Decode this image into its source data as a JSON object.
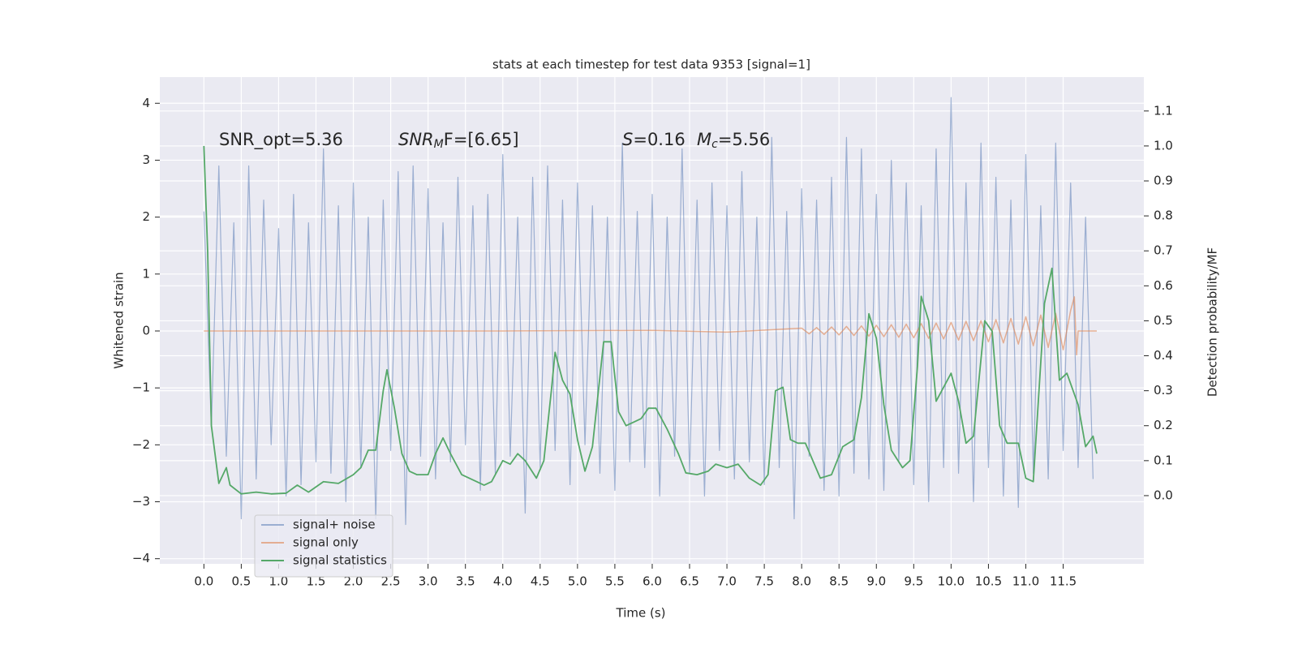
{
  "chart_data": {
    "type": "line",
    "title": "stats at each timestep for test data 9353 [signal=1]",
    "xlabel": "Time (s)",
    "ylabel": "Whitened strain",
    "y2label": "Detection probability/MF",
    "grid": true,
    "legend": "lower left",
    "xlim": [
      -0.59,
      12.58
    ],
    "ylim": [
      -4.09,
      4.46
    ],
    "y2lim": [
      -0.195,
      1.197
    ],
    "xticks": [
      {
        "value": 0,
        "label": "0.0"
      },
      0.5,
      {
        "value": 1,
        "label": "1.0"
      },
      1.5,
      {
        "value": 2,
        "label": "2.0"
      },
      2.5,
      {
        "value": 3,
        "label": "3.0"
      },
      3.5,
      {
        "value": 4,
        "label": "4.0"
      },
      4.5,
      {
        "value": 5,
        "label": "5.0"
      },
      5.5,
      {
        "value": 6,
        "label": "6.0"
      },
      6.5,
      {
        "value": 7,
        "label": "7.0"
      },
      7.5,
      {
        "value": 8,
        "label": "8.0"
      },
      8.5,
      {
        "value": 9,
        "label": "9.0"
      },
      9.5,
      {
        "value": 10,
        "label": "10.0"
      },
      10.5,
      {
        "value": 11,
        "label": "11.0"
      },
      11.5
    ],
    "yticks": [
      {
        "value": -4,
        "label": "−4"
      },
      {
        "value": -3,
        "label": "−3"
      },
      {
        "value": -2,
        "label": "−2"
      },
      {
        "value": -1,
        "label": "−1"
      },
      0,
      1,
      2,
      3,
      4
    ],
    "y2ticks": [
      {
        "value": 0,
        "label": "0.0"
      },
      0.1,
      0.2,
      0.3,
      0.4,
      0.5,
      0.6,
      0.7,
      0.8,
      0.9,
      {
        "value": 1,
        "label": "1.0"
      },
      1.1
    ],
    "annotations": [
      {
        "text": "SNR_opt=5.36"
      },
      {
        "symbol": "SNR",
        "subscript": "M",
        "text": "F=[6.65]"
      },
      {
        "symbol": "S",
        "text": "=0.16"
      },
      {
        "symbol": "M",
        "subscript": "c",
        "text": "=5.56"
      }
    ],
    "series": [
      {
        "name": "signal+ noise",
        "color": "#4c72b0",
        "x": [
          0.0,
          0.1,
          0.2,
          0.3,
          0.4,
          0.5,
          0.6,
          0.7,
          0.8,
          0.9,
          1.0,
          1.1,
          1.2,
          1.3,
          1.4,
          1.5,
          1.6,
          1.7,
          1.8,
          1.9,
          2.0,
          2.1,
          2.2,
          2.3,
          2.4,
          2.5,
          2.6,
          2.7,
          2.8,
          2.9,
          3.0,
          3.1,
          3.2,
          3.3,
          3.4,
          3.5,
          3.6,
          3.7,
          3.8,
          3.9,
          4.0,
          4.1,
          4.2,
          4.3,
          4.4,
          4.5,
          4.6,
          4.7,
          4.8,
          4.9,
          5.0,
          5.1,
          5.2,
          5.3,
          5.4,
          5.5,
          5.6,
          5.7,
          5.8,
          5.9,
          6.0,
          6.1,
          6.2,
          6.3,
          6.4,
          6.5,
          6.6,
          6.7,
          6.8,
          6.9,
          7.0,
          7.1,
          7.2,
          7.3,
          7.4,
          7.5,
          7.6,
          7.7,
          7.8,
          7.9,
          8.0,
          8.1,
          8.2,
          8.3,
          8.4,
          8.5,
          8.6,
          8.7,
          8.8,
          8.9,
          9.0,
          9.1,
          9.2,
          9.3,
          9.4,
          9.5,
          9.6,
          9.7,
          9.8,
          9.9,
          10.0,
          10.1,
          10.2,
          10.3,
          10.4,
          10.5,
          10.6,
          10.7,
          10.8,
          10.9,
          11.0,
          11.1,
          11.2,
          11.3,
          11.4,
          11.5,
          11.6,
          11.7,
          11.8,
          11.9
        ],
        "values": [
          2.1,
          -1.7,
          2.9,
          -2.2,
          1.9,
          -3.3,
          2.9,
          -2.6,
          2.3,
          -2.0,
          1.8,
          -2.9,
          2.4,
          -2.7,
          1.9,
          -2.3,
          3.2,
          -2.5,
          2.2,
          -3.0,
          2.6,
          -2.4,
          2.0,
          -3.3,
          2.3,
          -2.1,
          2.8,
          -3.4,
          2.9,
          -2.2,
          2.5,
          -2.6,
          1.9,
          -2.3,
          2.7,
          -2.0,
          2.2,
          -2.8,
          2.4,
          -2.5,
          3.1,
          -2.2,
          2.0,
          -3.2,
          2.7,
          -2.4,
          2.9,
          -2.1,
          2.3,
          -2.7,
          2.6,
          -2.0,
          2.2,
          -2.5,
          2.0,
          -2.8,
          3.3,
          -2.3,
          2.1,
          -2.4,
          2.4,
          -2.9,
          2.0,
          -2.2,
          3.2,
          -2.5,
          2.3,
          -2.9,
          2.6,
          -2.1,
          2.2,
          -2.6,
          2.8,
          -2.3,
          2.0,
          -2.7,
          3.4,
          -2.4,
          2.1,
          -3.3,
          2.5,
          -2.2,
          2.3,
          -2.8,
          2.7,
          -2.9,
          3.4,
          -2.5,
          3.2,
          -2.6,
          2.4,
          -2.8,
          3.0,
          -2.3,
          2.6,
          -2.7,
          2.2,
          -3.0,
          3.2,
          -2.4,
          4.1,
          -2.5,
          2.6,
          -3.0,
          3.3,
          -2.4,
          2.7,
          -2.9,
          2.3,
          -3.1,
          3.1,
          -2.5,
          2.2,
          -2.6,
          3.3,
          -2.1,
          2.6,
          -2.4,
          2.0,
          -2.6
        ]
      },
      {
        "name": "signal only",
        "color": "#dd8452",
        "x": [
          0.0,
          4.0,
          6.0,
          7.0,
          8.0,
          8.1,
          8.2,
          8.3,
          8.4,
          8.5,
          8.6,
          8.7,
          8.8,
          8.9,
          9.0,
          9.1,
          9.2,
          9.3,
          9.4,
          9.5,
          9.6,
          9.7,
          9.8,
          9.9,
          10.0,
          10.1,
          10.2,
          10.3,
          10.4,
          10.5,
          10.6,
          10.7,
          10.8,
          10.9,
          11.0,
          11.1,
          11.2,
          11.3,
          11.4,
          11.5,
          11.6,
          11.65,
          11.68,
          11.7,
          11.95
        ],
        "values": [
          0,
          0,
          0.01,
          -0.02,
          0.05,
          -0.05,
          0.06,
          -0.06,
          0.07,
          -0.07,
          0.08,
          -0.08,
          0.09,
          -0.09,
          0.1,
          -0.1,
          0.11,
          -0.11,
          0.12,
          -0.12,
          0.13,
          -0.13,
          0.14,
          -0.14,
          0.15,
          -0.16,
          0.17,
          -0.17,
          0.18,
          -0.19,
          0.2,
          -0.21,
          0.22,
          -0.23,
          0.25,
          -0.26,
          0.28,
          -0.29,
          0.31,
          -0.33,
          0.36,
          0.6,
          -0.42,
          0,
          0
        ]
      },
      {
        "name": "signal statistics",
        "color": "#55a868",
        "axis": "y2",
        "x": [
          0.0,
          0.05,
          0.1,
          0.2,
          0.3,
          0.35,
          0.5,
          0.7,
          0.9,
          1.1,
          1.25,
          1.4,
          1.6,
          1.8,
          2.0,
          2.1,
          2.2,
          2.3,
          2.4,
          2.45,
          2.55,
          2.65,
          2.75,
          2.85,
          3.0,
          3.1,
          3.2,
          3.3,
          3.45,
          3.65,
          3.75,
          3.85,
          4.0,
          4.1,
          4.2,
          4.3,
          4.45,
          4.55,
          4.65,
          4.7,
          4.8,
          4.9,
          5.0,
          5.1,
          5.2,
          5.35,
          5.45,
          5.55,
          5.65,
          5.75,
          5.85,
          5.95,
          6.05,
          6.2,
          6.35,
          6.45,
          6.6,
          6.75,
          6.85,
          7.0,
          7.15,
          7.3,
          7.45,
          7.55,
          7.65,
          7.75,
          7.85,
          7.95,
          8.05,
          8.15,
          8.25,
          8.4,
          8.55,
          8.7,
          8.8,
          8.9,
          9.0,
          9.1,
          9.2,
          9.35,
          9.45,
          9.55,
          9.6,
          9.7,
          9.8,
          9.9,
          10.0,
          10.1,
          10.2,
          10.3,
          10.45,
          10.55,
          10.65,
          10.75,
          10.9,
          11.0,
          11.1,
          11.25,
          11.35,
          11.45,
          11.55,
          11.7,
          11.8,
          11.9,
          11.95
        ],
        "values": [
          1.0,
          0.7,
          0.2,
          0.035,
          0.08,
          0.03,
          0.005,
          0.01,
          0.005,
          0.007,
          0.03,
          0.01,
          0.04,
          0.035,
          0.06,
          0.08,
          0.13,
          0.13,
          0.3,
          0.36,
          0.25,
          0.12,
          0.07,
          0.06,
          0.06,
          0.12,
          0.165,
          0.12,
          0.06,
          0.04,
          0.03,
          0.04,
          0.1,
          0.09,
          0.12,
          0.1,
          0.05,
          0.1,
          0.3,
          0.41,
          0.33,
          0.29,
          0.16,
          0.07,
          0.14,
          0.44,
          0.44,
          0.24,
          0.2,
          0.21,
          0.22,
          0.25,
          0.25,
          0.19,
          0.12,
          0.065,
          0.06,
          0.07,
          0.09,
          0.08,
          0.09,
          0.05,
          0.03,
          0.06,
          0.3,
          0.31,
          0.16,
          0.15,
          0.15,
          0.1,
          0.05,
          0.06,
          0.14,
          0.16,
          0.28,
          0.52,
          0.45,
          0.26,
          0.13,
          0.08,
          0.1,
          0.37,
          0.57,
          0.5,
          0.27,
          0.31,
          0.35,
          0.27,
          0.15,
          0.17,
          0.5,
          0.47,
          0.2,
          0.15,
          0.15,
          0.05,
          0.04,
          0.55,
          0.65,
          0.33,
          0.35,
          0.26,
          0.14,
          0.17,
          0.12
        ]
      }
    ]
  }
}
